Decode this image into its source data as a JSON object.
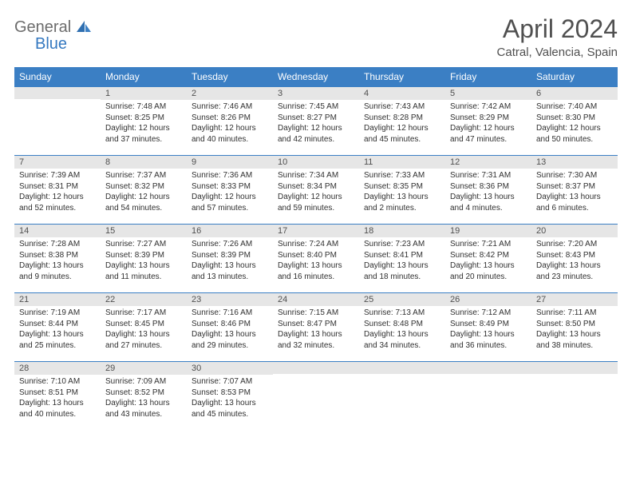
{
  "logo": {
    "text1": "General",
    "text2": "Blue"
  },
  "title": "April 2024",
  "location": "Catral, Valencia, Spain",
  "colors": {
    "header_bg": "#3b7fc4",
    "header_text": "#ffffff",
    "daynum_bg": "#e6e6e6",
    "cell_border": "#3b7fc4",
    "body_text": "#303030",
    "title_text": "#505050",
    "logo_gray": "#6c6c6c",
    "logo_blue": "#3478c0"
  },
  "typography": {
    "title_fontsize": 32,
    "location_fontsize": 15,
    "header_fontsize": 12,
    "daynum_fontsize": 11,
    "body_fontsize": 10
  },
  "day_headers": [
    "Sunday",
    "Monday",
    "Tuesday",
    "Wednesday",
    "Thursday",
    "Friday",
    "Saturday"
  ],
  "weeks": [
    [
      {
        "num": "",
        "lines": []
      },
      {
        "num": "1",
        "lines": [
          "Sunrise: 7:48 AM",
          "Sunset: 8:25 PM",
          "Daylight: 12 hours",
          "and 37 minutes."
        ]
      },
      {
        "num": "2",
        "lines": [
          "Sunrise: 7:46 AM",
          "Sunset: 8:26 PM",
          "Daylight: 12 hours",
          "and 40 minutes."
        ]
      },
      {
        "num": "3",
        "lines": [
          "Sunrise: 7:45 AM",
          "Sunset: 8:27 PM",
          "Daylight: 12 hours",
          "and 42 minutes."
        ]
      },
      {
        "num": "4",
        "lines": [
          "Sunrise: 7:43 AM",
          "Sunset: 8:28 PM",
          "Daylight: 12 hours",
          "and 45 minutes."
        ]
      },
      {
        "num": "5",
        "lines": [
          "Sunrise: 7:42 AM",
          "Sunset: 8:29 PM",
          "Daylight: 12 hours",
          "and 47 minutes."
        ]
      },
      {
        "num": "6",
        "lines": [
          "Sunrise: 7:40 AM",
          "Sunset: 8:30 PM",
          "Daylight: 12 hours",
          "and 50 minutes."
        ]
      }
    ],
    [
      {
        "num": "7",
        "lines": [
          "Sunrise: 7:39 AM",
          "Sunset: 8:31 PM",
          "Daylight: 12 hours",
          "and 52 minutes."
        ]
      },
      {
        "num": "8",
        "lines": [
          "Sunrise: 7:37 AM",
          "Sunset: 8:32 PM",
          "Daylight: 12 hours",
          "and 54 minutes."
        ]
      },
      {
        "num": "9",
        "lines": [
          "Sunrise: 7:36 AM",
          "Sunset: 8:33 PM",
          "Daylight: 12 hours",
          "and 57 minutes."
        ]
      },
      {
        "num": "10",
        "lines": [
          "Sunrise: 7:34 AM",
          "Sunset: 8:34 PM",
          "Daylight: 12 hours",
          "and 59 minutes."
        ]
      },
      {
        "num": "11",
        "lines": [
          "Sunrise: 7:33 AM",
          "Sunset: 8:35 PM",
          "Daylight: 13 hours",
          "and 2 minutes."
        ]
      },
      {
        "num": "12",
        "lines": [
          "Sunrise: 7:31 AM",
          "Sunset: 8:36 PM",
          "Daylight: 13 hours",
          "and 4 minutes."
        ]
      },
      {
        "num": "13",
        "lines": [
          "Sunrise: 7:30 AM",
          "Sunset: 8:37 PM",
          "Daylight: 13 hours",
          "and 6 minutes."
        ]
      }
    ],
    [
      {
        "num": "14",
        "lines": [
          "Sunrise: 7:28 AM",
          "Sunset: 8:38 PM",
          "Daylight: 13 hours",
          "and 9 minutes."
        ]
      },
      {
        "num": "15",
        "lines": [
          "Sunrise: 7:27 AM",
          "Sunset: 8:39 PM",
          "Daylight: 13 hours",
          "and 11 minutes."
        ]
      },
      {
        "num": "16",
        "lines": [
          "Sunrise: 7:26 AM",
          "Sunset: 8:39 PM",
          "Daylight: 13 hours",
          "and 13 minutes."
        ]
      },
      {
        "num": "17",
        "lines": [
          "Sunrise: 7:24 AM",
          "Sunset: 8:40 PM",
          "Daylight: 13 hours",
          "and 16 minutes."
        ]
      },
      {
        "num": "18",
        "lines": [
          "Sunrise: 7:23 AM",
          "Sunset: 8:41 PM",
          "Daylight: 13 hours",
          "and 18 minutes."
        ]
      },
      {
        "num": "19",
        "lines": [
          "Sunrise: 7:21 AM",
          "Sunset: 8:42 PM",
          "Daylight: 13 hours",
          "and 20 minutes."
        ]
      },
      {
        "num": "20",
        "lines": [
          "Sunrise: 7:20 AM",
          "Sunset: 8:43 PM",
          "Daylight: 13 hours",
          "and 23 minutes."
        ]
      }
    ],
    [
      {
        "num": "21",
        "lines": [
          "Sunrise: 7:19 AM",
          "Sunset: 8:44 PM",
          "Daylight: 13 hours",
          "and 25 minutes."
        ]
      },
      {
        "num": "22",
        "lines": [
          "Sunrise: 7:17 AM",
          "Sunset: 8:45 PM",
          "Daylight: 13 hours",
          "and 27 minutes."
        ]
      },
      {
        "num": "23",
        "lines": [
          "Sunrise: 7:16 AM",
          "Sunset: 8:46 PM",
          "Daylight: 13 hours",
          "and 29 minutes."
        ]
      },
      {
        "num": "24",
        "lines": [
          "Sunrise: 7:15 AM",
          "Sunset: 8:47 PM",
          "Daylight: 13 hours",
          "and 32 minutes."
        ]
      },
      {
        "num": "25",
        "lines": [
          "Sunrise: 7:13 AM",
          "Sunset: 8:48 PM",
          "Daylight: 13 hours",
          "and 34 minutes."
        ]
      },
      {
        "num": "26",
        "lines": [
          "Sunrise: 7:12 AM",
          "Sunset: 8:49 PM",
          "Daylight: 13 hours",
          "and 36 minutes."
        ]
      },
      {
        "num": "27",
        "lines": [
          "Sunrise: 7:11 AM",
          "Sunset: 8:50 PM",
          "Daylight: 13 hours",
          "and 38 minutes."
        ]
      }
    ],
    [
      {
        "num": "28",
        "lines": [
          "Sunrise: 7:10 AM",
          "Sunset: 8:51 PM",
          "Daylight: 13 hours",
          "and 40 minutes."
        ]
      },
      {
        "num": "29",
        "lines": [
          "Sunrise: 7:09 AM",
          "Sunset: 8:52 PM",
          "Daylight: 13 hours",
          "and 43 minutes."
        ]
      },
      {
        "num": "30",
        "lines": [
          "Sunrise: 7:07 AM",
          "Sunset: 8:53 PM",
          "Daylight: 13 hours",
          "and 45 minutes."
        ]
      },
      {
        "num": "",
        "lines": []
      },
      {
        "num": "",
        "lines": []
      },
      {
        "num": "",
        "lines": []
      },
      {
        "num": "",
        "lines": []
      }
    ]
  ]
}
